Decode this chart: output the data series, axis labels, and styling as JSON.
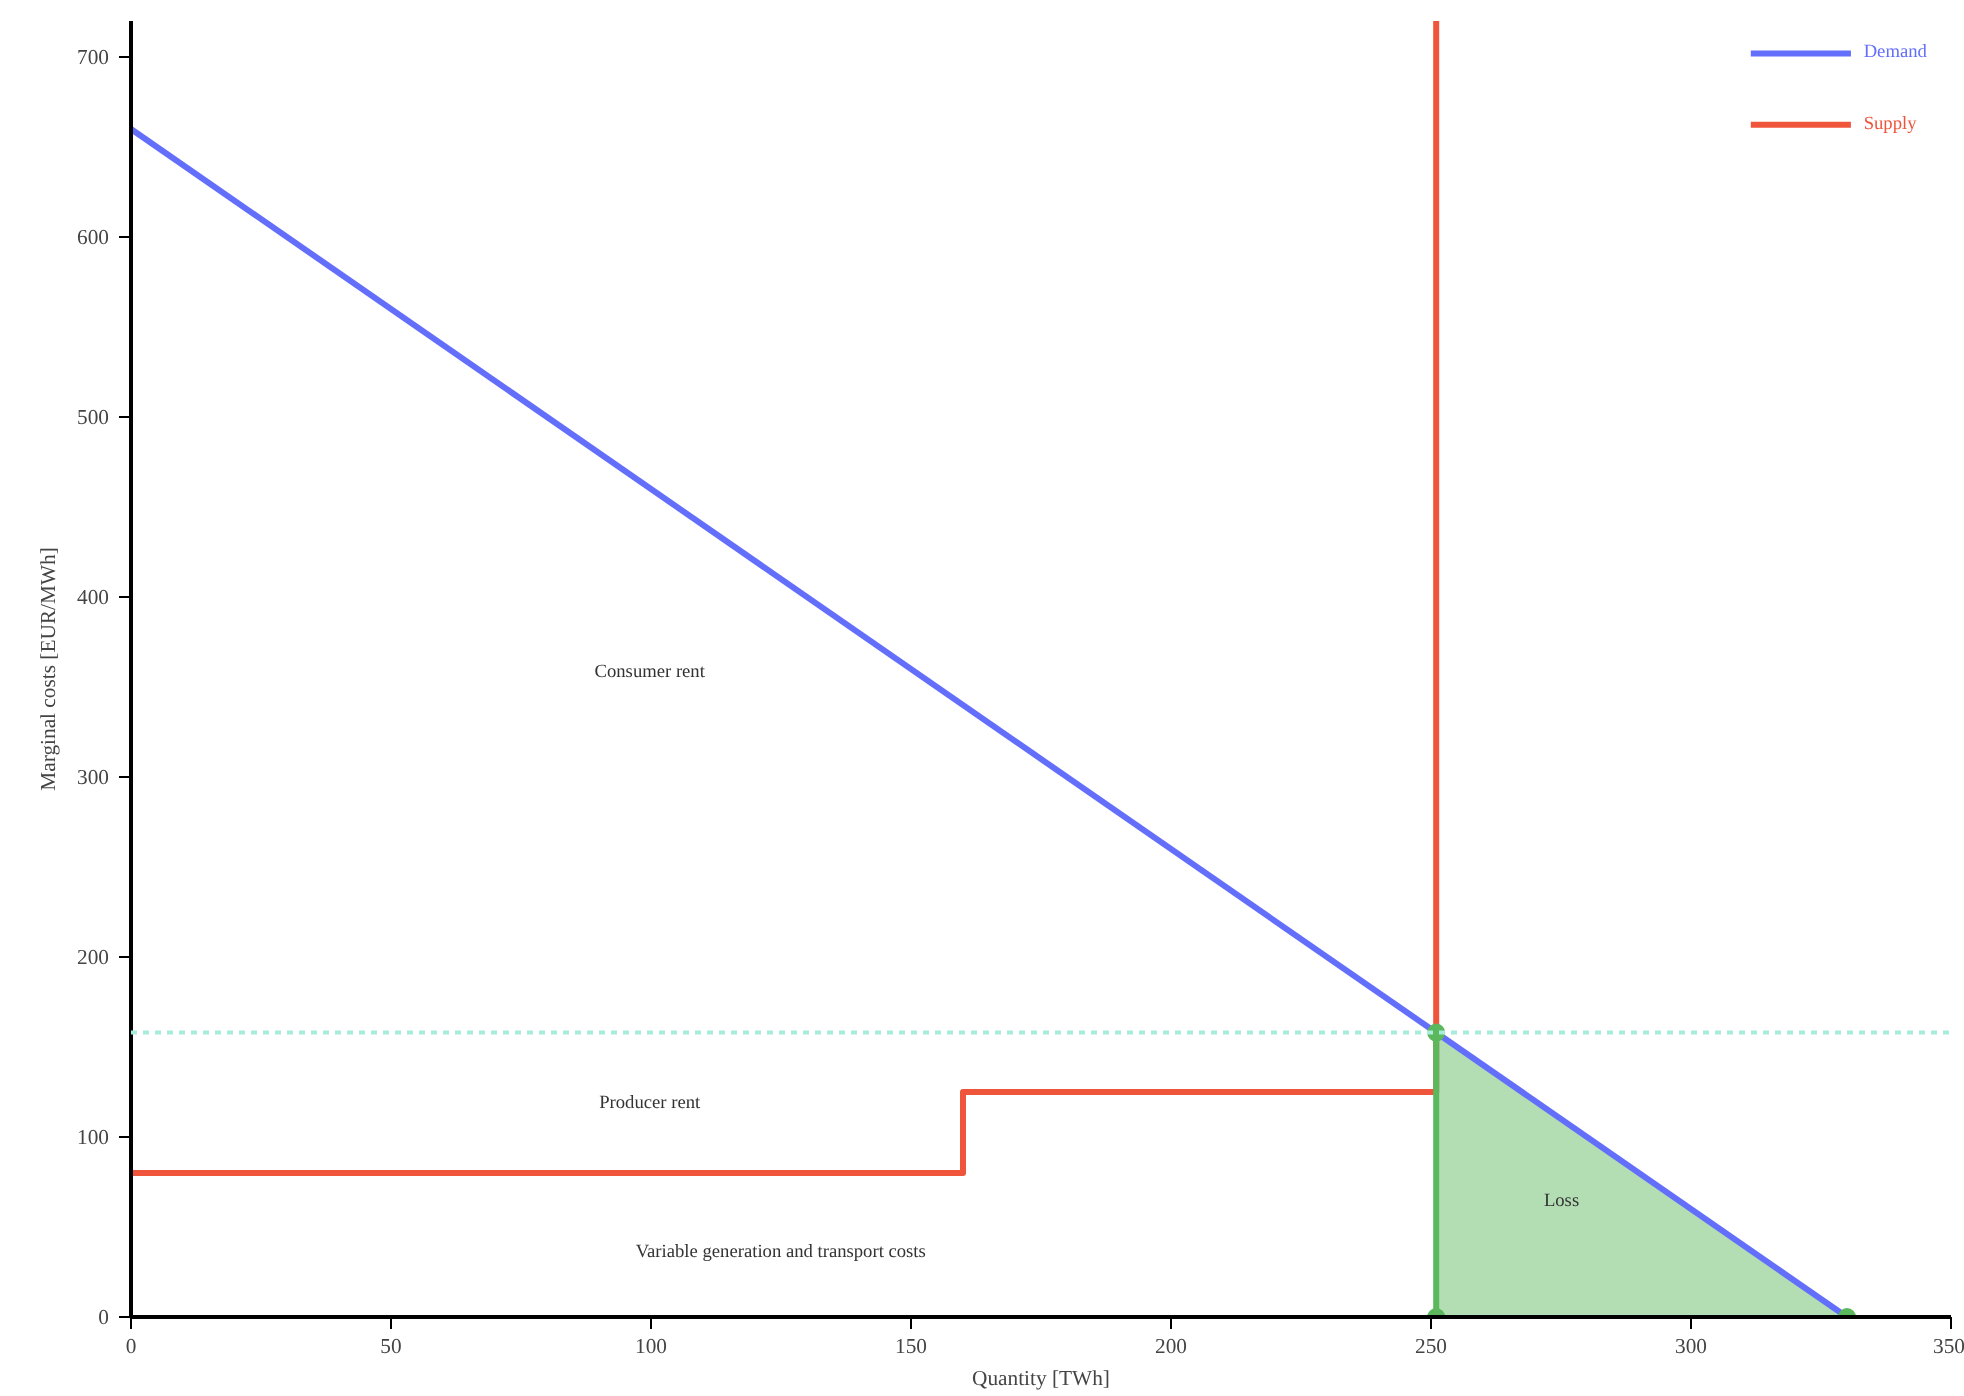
{
  "chart_data": {
    "type": "line",
    "xlabel": "Quantity [TWh]",
    "ylabel": "Marginal costs [EUR/MWh]",
    "xlim": [
      0,
      350
    ],
    "xticks": [
      0,
      50,
      100,
      150,
      200,
      250,
      300,
      350
    ],
    "ylim": [
      0,
      720
    ],
    "yticks": [
      0,
      100,
      200,
      300,
      400,
      500,
      600,
      700
    ],
    "grid": false,
    "legend": "top right",
    "marker": "none",
    "line_style": "solid",
    "series": [
      {
        "type": "area",
        "color": "#b3ddb3",
        "x": [
          251,
          330
        ],
        "values": [
          158,
          0
        ]
      },
      {
        "name": "Demand",
        "color": "#636efa",
        "x": [
          0,
          330
        ],
        "values": [
          660,
          0
        ]
      },
      {
        "name": "Supply",
        "color": "#ef553b",
        "x": [
          0,
          160,
          160,
          251,
          251
        ],
        "values": [
          80,
          80,
          125,
          125,
          720
        ]
      },
      {
        "type": "line",
        "color": "#5cb85c",
        "x": [
          251,
          251
        ],
        "values": [
          0,
          158
        ]
      },
      {
        "type": "scatter",
        "marker": "circle",
        "color": "#5cb85c",
        "x": [
          251,
          251,
          330
        ],
        "values": [
          158,
          0,
          0
        ]
      }
    ],
    "ref_lines": [
      {
        "axis": "y",
        "value": 158,
        "color": "#a8ecdc",
        "line_style": "dotted"
      }
    ],
    "annotations": [
      "Consumer rent",
      "Producer rent",
      "Variable generation and transport costs",
      "Loss"
    ]
  }
}
